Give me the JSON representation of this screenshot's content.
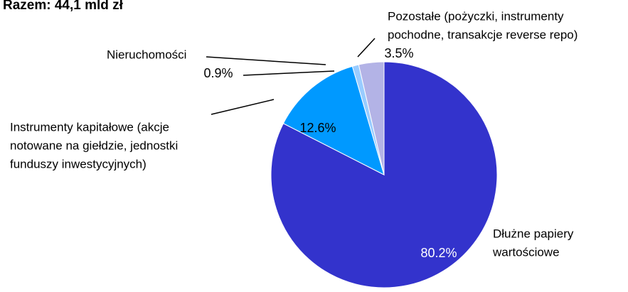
{
  "chart_data": {
    "type": "pie",
    "title": "Razem: 44,1 mld zł",
    "categories": [
      [
        "Dłużne papiery",
        "wartościowe"
      ],
      [
        "Instrumenty kapitałowe (akcje",
        "notowane na giełdzie, jednostki",
        "funduszy inwestycyjnych)"
      ],
      [
        "Nieruchomości"
      ],
      [
        "Pozostałe (pożyczki, instrumenty",
        "pochodne, transakcje reverse repo)"
      ]
    ],
    "values": [
      80.2,
      12.6,
      0.9,
      3.5
    ],
    "value_labels": [
      "80.2%",
      "12.6%",
      "0.9%",
      "3.5%"
    ],
    "colors": [
      "#3333cc",
      "#0099ff",
      "#99ccff",
      "#b3b3e6"
    ]
  }
}
